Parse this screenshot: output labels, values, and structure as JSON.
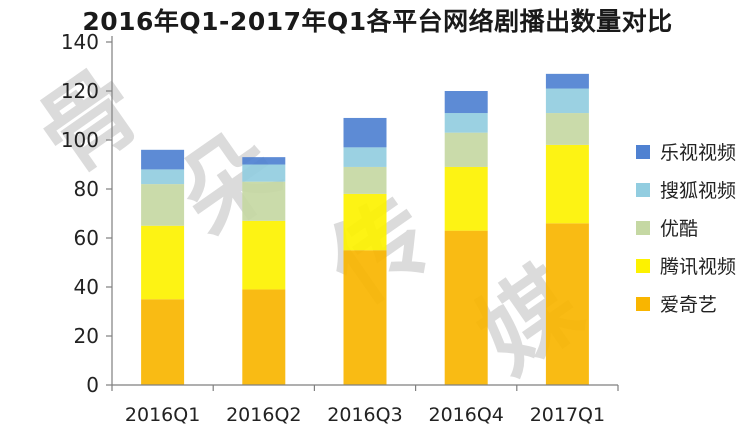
{
  "colors": {
    "乐视视频": "#4f81d1",
    "搜狐视频": "#92cde0",
    "优酷": "#c5d8a3",
    "腾讯视频": "#fdf200",
    "爱奇艺": "#f9b500",
    "watermark": "#9a9a9a"
  },
  "watermark": {
    "chars": [
      "骨",
      "朵",
      "传",
      "媒"
    ]
  },
  "chart_data": {
    "type": "bar",
    "stacked": true,
    "title": "2016年Q1-2017年Q1各平台网络剧播出数量对比",
    "categories": [
      "2016Q1",
      "2016Q2",
      "2016Q3",
      "2016Q4",
      "2017Q1"
    ],
    "series": [
      {
        "name": "爱奇艺",
        "values": [
          35,
          39,
          55,
          63,
          66
        ]
      },
      {
        "name": "腾讯视频",
        "values": [
          30,
          28,
          23,
          26,
          32
        ]
      },
      {
        "name": "优酷",
        "values": [
          17,
          16,
          11,
          14,
          13
        ]
      },
      {
        "name": "搜狐视频",
        "values": [
          6,
          7,
          8,
          8,
          10
        ]
      },
      {
        "name": "乐视视频",
        "values": [
          8,
          3,
          12,
          9,
          6
        ]
      }
    ],
    "ylim": [
      0,
      140
    ],
    "yticks": [
      0,
      20,
      40,
      60,
      80,
      100,
      120,
      140
    ],
    "legend_order": [
      "乐视视频",
      "搜狐视频",
      "优酷",
      "腾讯视频",
      "爱奇艺"
    ],
    "legend_position": "right",
    "grid": false
  }
}
